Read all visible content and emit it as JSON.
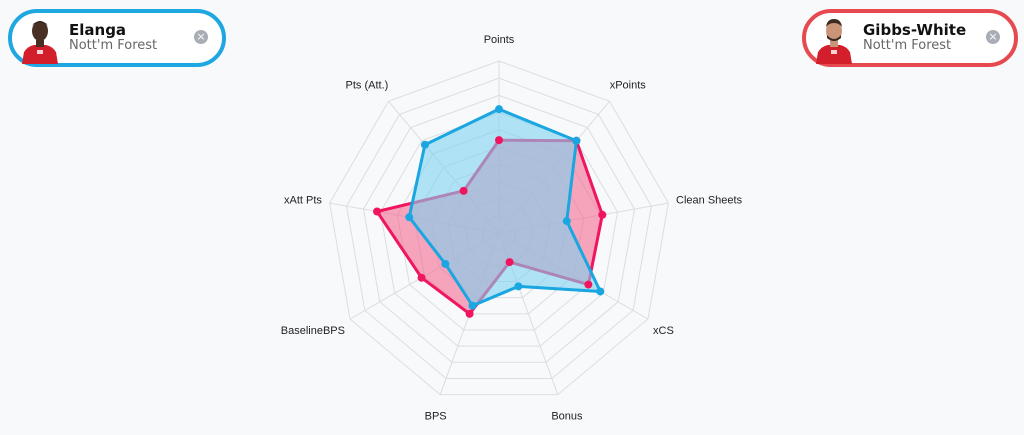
{
  "players": [
    {
      "name": "Elanga",
      "team": "Nott'm Forest",
      "color": "#1ea7e0",
      "close_label": "×",
      "icon": "player-photo"
    },
    {
      "name": "Gibbs-White",
      "team": "Nott'm Forest",
      "color": "#e64a50",
      "close_label": "×",
      "icon": "player-photo"
    }
  ],
  "chart_data": {
    "type": "radar",
    "categories": [
      "Points",
      "xPoints",
      "Clean Sheets",
      "xCS",
      "Bonus",
      "BPS",
      "BaselineBPS",
      "xAtt Pts",
      "Pts (Att.)"
    ],
    "range": [
      0,
      10
    ],
    "rings": 10,
    "grid": true,
    "series": [
      {
        "name": "Gibbs-White",
        "color": "#f0155f",
        "fill": "#f46a92",
        "values": [
          5.4,
          7.0,
          6.1,
          6.0,
          1.8,
          5.0,
          5.2,
          7.2,
          3.2
        ]
      },
      {
        "name": "Elanga",
        "color": "#1aa6e0",
        "fill": "#7fd2f0",
        "values": [
          7.2,
          7.0,
          4.0,
          6.8,
          3.3,
          4.5,
          3.6,
          5.3,
          6.7
        ]
      }
    ]
  }
}
